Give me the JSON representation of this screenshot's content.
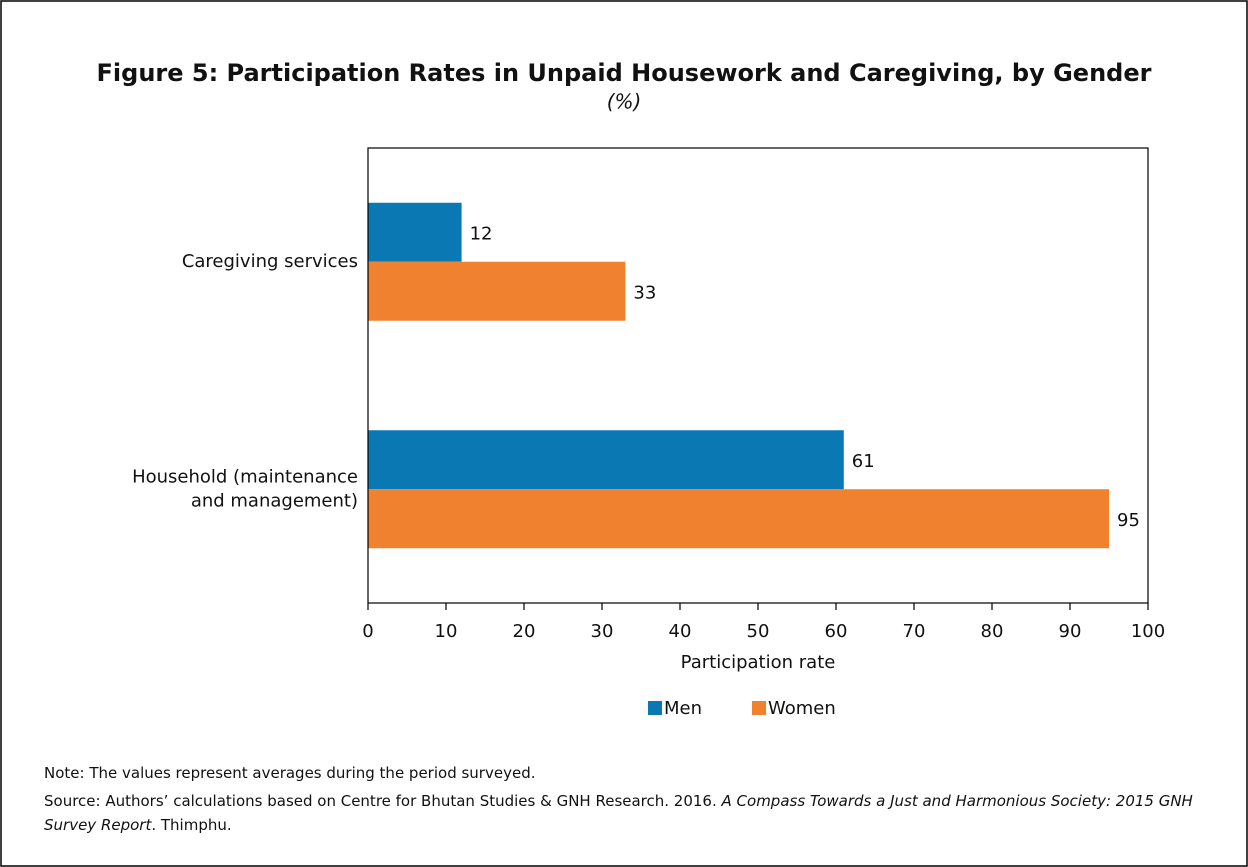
{
  "chart_data": {
    "type": "hbar",
    "title": "Figure 5: Participation Rates in Unpaid Housework and Caregiving, by Gender",
    "subtitle": "(%)",
    "categories": [
      [
        "Caregiving services"
      ],
      [
        "Household (maintenance",
        "and management)"
      ]
    ],
    "series": [
      {
        "name": "Men",
        "color": "#0a79b3",
        "values": [
          12,
          61
        ]
      },
      {
        "name": "Women",
        "color": "#f0812f",
        "values": [
          33,
          95
        ]
      }
    ],
    "xlabel": "Participation rate",
    "xlim": [
      0,
      100
    ],
    "xticks": [
      0,
      10,
      20,
      30,
      40,
      50,
      60,
      70,
      80,
      90,
      100
    ],
    "legend": "bottom"
  },
  "notes": {
    "note": "Note: The values represent averages during the period surveyed.",
    "source": [
      "Source: Authors’ calculations based on Centre for Bhutan Studies & GNH Research. 2016. ",
      "A Compass Towards a Just and Harmonious Society: 2015 GNH Survey Report",
      ". Thimphu."
    ]
  }
}
